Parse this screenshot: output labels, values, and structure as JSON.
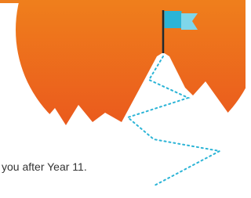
{
  "text": "you after Year 11."
}
